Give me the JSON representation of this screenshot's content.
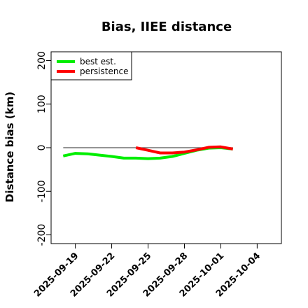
{
  "chart_data": {
    "type": "line",
    "title": "Bias, IIEE distance",
    "xlabel": "",
    "ylabel": "Distance bias (km)",
    "ylim": [
      -220,
      220
    ],
    "xlim": [
      "2025-09-17",
      "2025-10-06"
    ],
    "yticks": [
      200,
      100,
      0,
      -100,
      -200
    ],
    "yticks_labels": [
      "200",
      "100",
      "0",
      "-100",
      "-200"
    ],
    "xticks": [
      "2025-09-19",
      "2025-09-22",
      "2025-09-25",
      "2025-09-28",
      "2025-10-01",
      "2025-10-04"
    ],
    "grid": false,
    "legend_position": "top-left",
    "reference_line": {
      "y": 0,
      "from": "2025-09-18",
      "to": "2025-10-02",
      "color": "#555555"
    },
    "series": [
      {
        "name": "best est.",
        "color": "#00ee00",
        "x": [
          "2025-09-18",
          "2025-09-19",
          "2025-09-20",
          "2025-09-21",
          "2025-09-22",
          "2025-09-23",
          "2025-09-24",
          "2025-09-25",
          "2025-09-26",
          "2025-09-27",
          "2025-09-28",
          "2025-09-29",
          "2025-09-30",
          "2025-10-01",
          "2025-10-02"
        ],
        "values": [
          -19,
          -13,
          -14,
          -17,
          -20,
          -24,
          -24,
          -25,
          -24,
          -20,
          -13,
          -6,
          -1,
          0,
          -3
        ]
      },
      {
        "name": "persistence",
        "color": "#ff0000",
        "x": [
          "2025-09-24",
          "2025-09-25",
          "2025-09-26",
          "2025-09-27",
          "2025-09-28",
          "2025-09-29",
          "2025-09-30",
          "2025-10-01",
          "2025-10-02"
        ],
        "values": [
          0,
          -6,
          -12,
          -12,
          -10,
          -5,
          1,
          2,
          -3
        ]
      }
    ]
  }
}
